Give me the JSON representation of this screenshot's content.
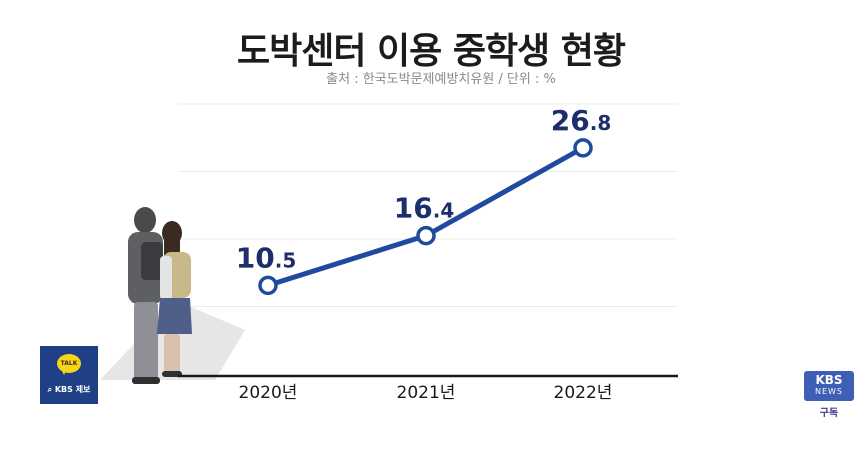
{
  "header": {
    "title": "도박센터 이용 중학생 현황",
    "source": "출처 : 한국도박문제예방치유원 / 단위 : %"
  },
  "chart_data": {
    "type": "line",
    "title": "도박센터 이용 중학생 현황",
    "categories": [
      "2020년",
      "2021년",
      "2022년"
    ],
    "series": [
      {
        "values": [
          10.5,
          16.4,
          26.8
        ]
      }
    ],
    "value_labels": [
      {
        "int": "10",
        "dec": ".5"
      },
      {
        "int": "16",
        "dec": ".4"
      },
      {
        "int": "26",
        "dec": ".8"
      }
    ],
    "ylim": [
      0,
      32
    ],
    "grid": true,
    "line_color": "#1f4aa0",
    "marker_fill": "#ffffff",
    "label_color": "#1c2f6b"
  },
  "overlays": {
    "report_button": {
      "bubble_text": "TALK",
      "label": "KBS 제보",
      "icon": "search-icon",
      "bg": "#1f3f87",
      "bubble_color": "#f7d417"
    },
    "kbs_logo": {
      "line1": "KBS",
      "line2": "NEWS",
      "subscribe": "구독",
      "bg": "#3d60b6"
    }
  }
}
